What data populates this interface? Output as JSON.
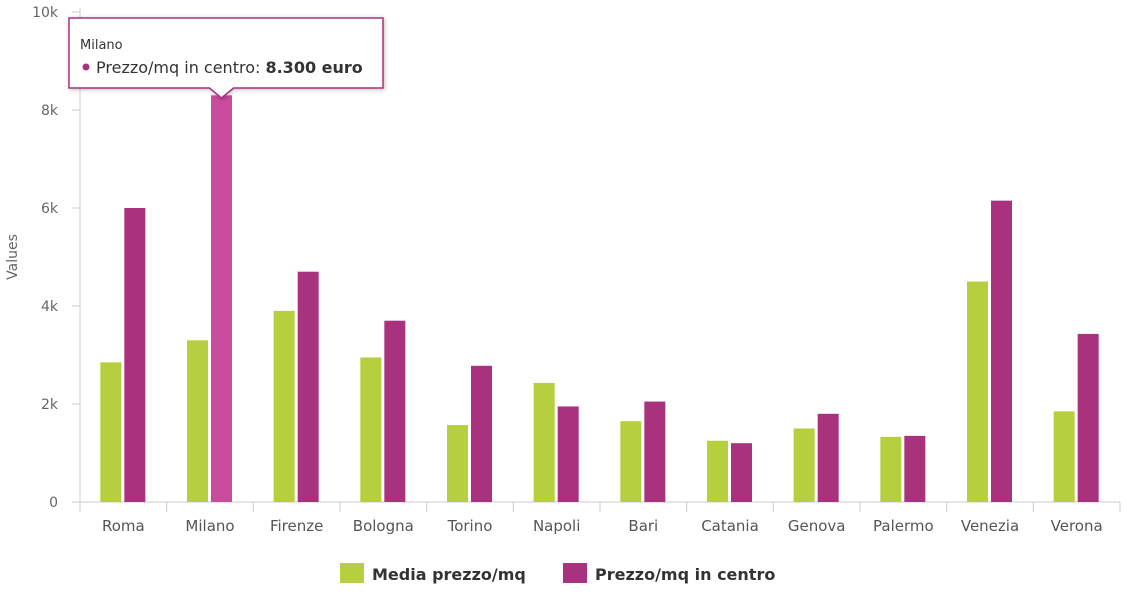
{
  "chart_data": {
    "type": "bar",
    "ylabel": "Values",
    "ylim": [
      0,
      10000
    ],
    "yticks": [
      0,
      2000,
      4000,
      6000,
      8000,
      10000
    ],
    "ytick_labels": [
      "0",
      "2k",
      "4k",
      "6k",
      "8k",
      "10k"
    ],
    "grid": false,
    "legend_position": "bottom",
    "categories": [
      "Roma",
      "Milano",
      "Firenze",
      "Bologna",
      "Torino",
      "Napoli",
      "Bari",
      "Catania",
      "Genova",
      "Palermo",
      "Venezia",
      "Verona"
    ],
    "series": [
      {
        "name": "Media prezzo/mq",
        "color": "#b5cf3f",
        "values": [
          2850,
          3300,
          3900,
          2950,
          1570,
          2430,
          1650,
          1250,
          1500,
          1330,
          4500,
          1850
        ]
      },
      {
        "name": "Prezzo/mq in centro",
        "color": "#a8327e",
        "values": [
          6000,
          8300,
          4700,
          3700,
          2780,
          1950,
          2050,
          1200,
          1800,
          1350,
          6150,
          3430
        ]
      }
    ],
    "hover_color": "#c84d9e",
    "tooltip": {
      "category": "Milano",
      "series": "Prezzo/mq in centro",
      "label": "Prezzo/mq in centro: ",
      "value": "8.300 euro",
      "category_index": 1,
      "series_index": 1
    }
  }
}
